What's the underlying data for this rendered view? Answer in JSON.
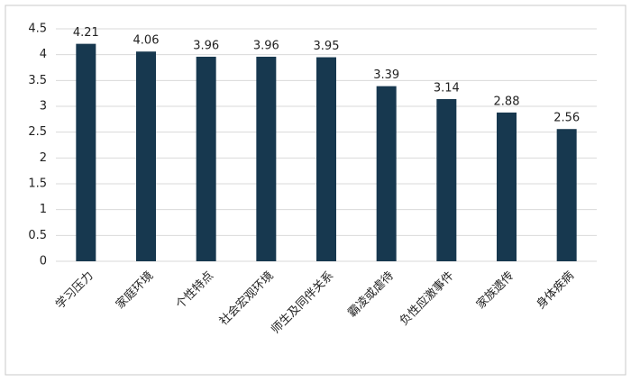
{
  "chart_data": {
    "type": "bar",
    "categories": [
      "学习压力",
      "家庭环境",
      "个性特点",
      "社会宏观环境",
      "师生及同伴关系",
      "霸凌或虐待",
      "负性应激事件",
      "家族遗传",
      "身体疾病"
    ],
    "values": [
      4.21,
      4.06,
      3.96,
      3.96,
      3.95,
      3.39,
      3.14,
      2.88,
      2.56
    ],
    "color": "#17384f",
    "ylim": [
      0,
      4.5
    ],
    "yticks": [
      0,
      0.5,
      1,
      1.5,
      2,
      2.5,
      3,
      3.5,
      4,
      4.5
    ],
    "grid": true
  }
}
